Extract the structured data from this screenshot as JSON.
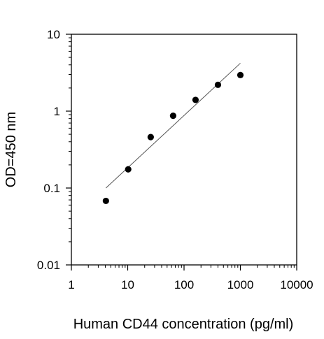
{
  "chart_data": {
    "type": "scatter",
    "title": "",
    "xlabel": "Human CD44 concentration (pg/ml)",
    "ylabel": "OD=450 nm",
    "xscale": "log",
    "yscale": "log",
    "xlim": [
      1,
      10000
    ],
    "ylim": [
      0.01,
      10
    ],
    "xticks": [
      1,
      10,
      100,
      1000,
      10000
    ],
    "xtick_labels": [
      "1",
      "10",
      "100",
      "1000",
      "10000"
    ],
    "yticks": [
      0.01,
      0.1,
      1,
      10
    ],
    "ytick_labels": [
      "0.01",
      "0.1",
      "1",
      "10"
    ],
    "grid": false,
    "legend": "none",
    "series": [
      {
        "x": [
          4.1,
          10.2,
          25.6,
          64,
          160,
          400,
          1000
        ],
        "y": [
          0.068,
          0.175,
          0.46,
          0.87,
          1.4,
          2.2,
          2.95
        ]
      }
    ],
    "fit_line": {
      "x": [
        4.1,
        1000
      ],
      "y": [
        0.1,
        4.2
      ]
    },
    "colors": {
      "points": "#000000",
      "fit_line": "#555555",
      "axes": "#000000"
    }
  }
}
